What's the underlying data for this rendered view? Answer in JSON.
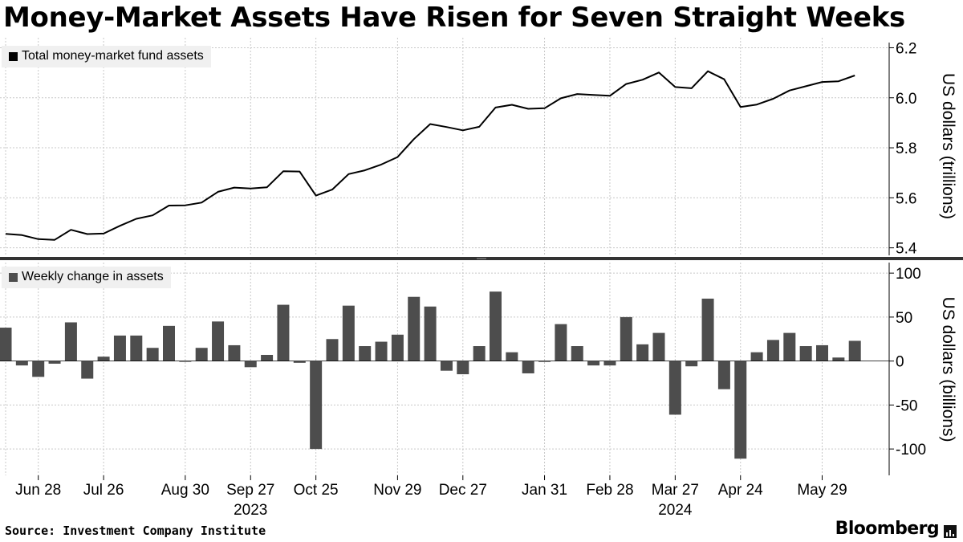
{
  "title": "Money-Market Assets Have Risen for Seven Straight Weeks",
  "source": "Source: Investment Company Institute",
  "brand": "Bloomberg",
  "colors": {
    "line": "#000000",
    "bar": "#4d4d4d",
    "grid": "#c8c8c8",
    "legend_bg": "#f0f0f0"
  },
  "chart_data": [
    {
      "type": "line",
      "legend": "Total money-market fund assets",
      "ylabel": "US dollars (trillions)",
      "ylim": [
        5.37,
        6.24
      ],
      "yticks": [
        5.4,
        5.6,
        5.8,
        6.0,
        6.2
      ],
      "yticklabels": [
        "5.4",
        "5.6",
        "5.8",
        "6.0",
        "6.2"
      ],
      "values": [
        5.456,
        5.451,
        5.435,
        5.432,
        5.472,
        5.455,
        5.457,
        5.488,
        5.516,
        5.53,
        5.569,
        5.57,
        5.581,
        5.624,
        5.641,
        5.637,
        5.642,
        5.706,
        5.705,
        5.609,
        5.633,
        5.695,
        5.71,
        5.733,
        5.763,
        5.835,
        5.895,
        5.883,
        5.87,
        5.884,
        5.961,
        5.972,
        5.956,
        5.958,
        5.998,
        6.015,
        6.011,
        6.008,
        6.055,
        6.072,
        6.101,
        6.043,
        6.038,
        6.106,
        6.074,
        5.963,
        5.973,
        5.996,
        6.029,
        6.046,
        6.063,
        6.066,
        6.089
      ]
    },
    {
      "type": "bar",
      "legend": "Weekly change in assets",
      "ylabel": "US dollars (billions)",
      "ylim": [
        -130,
        112
      ],
      "yticks": [
        100,
        50,
        0,
        -50,
        -100
      ],
      "yticklabels": [
        "100",
        "50",
        "0",
        "-50",
        "-100"
      ],
      "values": [
        38,
        -5,
        -18,
        -3,
        44,
        -20,
        5,
        29,
        29,
        15,
        40,
        0,
        15,
        45,
        18,
        -7,
        7,
        64,
        -2,
        -100,
        25,
        63,
        17,
        22,
        30,
        73,
        62,
        -11,
        -15,
        17,
        79,
        10,
        -14,
        -1,
        42,
        17,
        -5,
        -5,
        50,
        19,
        32,
        -61,
        -6,
        71,
        -32,
        -111,
        10,
        24,
        32,
        17,
        18,
        4,
        23
      ]
    }
  ],
  "x_axis": {
    "ticks": [
      {
        "week": 2,
        "label": "Jun 28"
      },
      {
        "week": 6,
        "label": "Jul 26"
      },
      {
        "week": 11,
        "label": "Aug 30"
      },
      {
        "week": 15,
        "label": "Sep 27"
      },
      {
        "week": 19,
        "label": "Oct 25"
      },
      {
        "week": 24,
        "label": "Nov 29"
      },
      {
        "week": 28,
        "label": "Dec 27"
      },
      {
        "week": 33,
        "label": "Jan 31"
      },
      {
        "week": 37,
        "label": "Feb 28"
      },
      {
        "week": 41,
        "label": "Mar 27"
      },
      {
        "week": 45,
        "label": "Apr 24"
      },
      {
        "week": 50,
        "label": "May 29"
      }
    ],
    "years": [
      {
        "week": 15,
        "label": "2023"
      },
      {
        "week": 41,
        "label": "2024"
      }
    ],
    "vertical_gridlines": [
      0,
      2,
      6,
      11,
      15,
      19,
      24,
      28,
      33,
      37,
      41,
      45,
      50
    ]
  }
}
